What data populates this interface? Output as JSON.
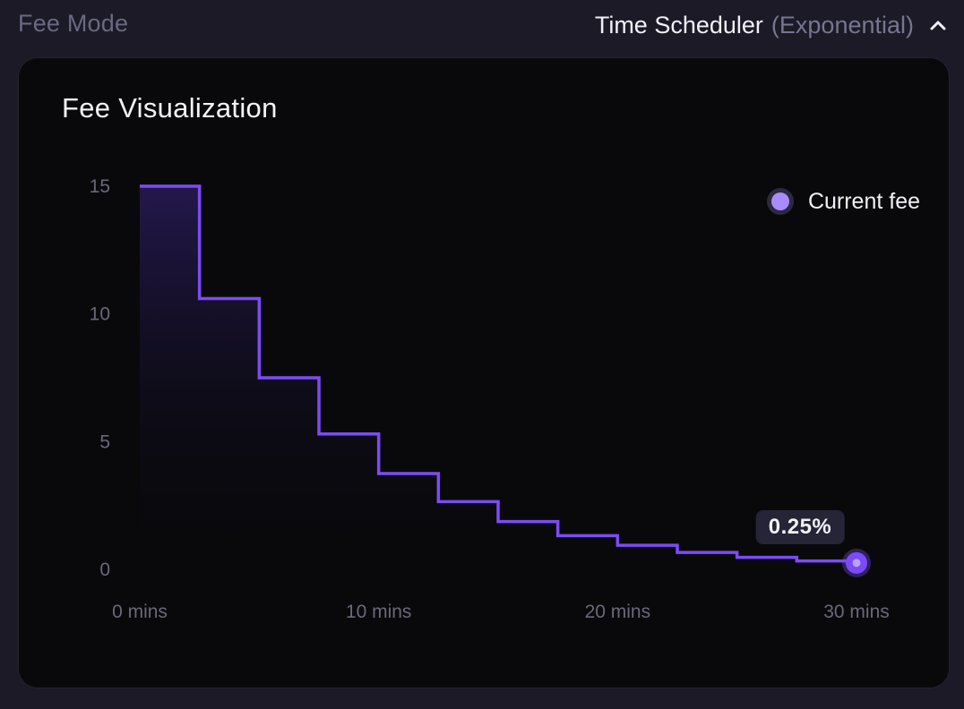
{
  "header": {
    "fee_mode_label": "Fee Mode",
    "mode_name": "Time Scheduler",
    "mode_variant": "(Exponential)"
  },
  "card": {
    "title": "Fee Visualization"
  },
  "legend": {
    "label": "Current fee"
  },
  "tooltip": {
    "value": "0.25%"
  },
  "colors": {
    "line": "#7b4cf5",
    "fill_top": "#3a2480",
    "marker": "#7b4cf5",
    "legend_dot": "#a98bff"
  },
  "chart_data": {
    "type": "line",
    "step": true,
    "x": [
      0,
      2.5,
      5,
      7.5,
      10,
      12.5,
      15,
      17.5,
      20,
      22.5,
      25,
      27.5,
      30
    ],
    "y": [
      15,
      10.6,
      7.5,
      5.3,
      3.75,
      2.65,
      1.87,
      1.32,
      0.94,
      0.66,
      0.47,
      0.33,
      0.25
    ],
    "xlim": [
      0,
      30
    ],
    "ylim": [
      0,
      15
    ],
    "x_ticks": [
      0,
      10,
      20,
      30
    ],
    "x_tick_labels": [
      "0 mins",
      "10 mins",
      "20 mins",
      "30 mins"
    ],
    "y_ticks": [
      0,
      5,
      10,
      15
    ],
    "y_tick_labels": [
      "0",
      "5",
      "10",
      "15"
    ],
    "current_point": {
      "x": 30,
      "y": 0.25,
      "label": "0.25%"
    },
    "legend": [
      "Current fee"
    ],
    "grid": false,
    "legend_position": "top-right"
  }
}
